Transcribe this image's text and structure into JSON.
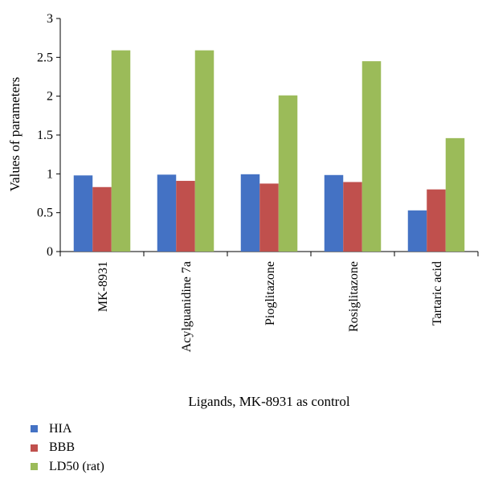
{
  "chart_data": {
    "type": "bar",
    "title": "",
    "xlabel": "Ligands, MK-8931 as control",
    "ylabel": "Values of parameters",
    "categories": [
      "MK-8931",
      "Acylguanidine 7a",
      "Pioglitazone",
      "Rosiglitazone",
      "Tartaric acid"
    ],
    "series": [
      {
        "name": "HIA",
        "color": "#4472C4",
        "values": [
          0.98,
          0.99,
          0.995,
          0.985,
          0.53
        ]
      },
      {
        "name": "BBB",
        "color": "#C0504D",
        "values": [
          0.83,
          0.91,
          0.875,
          0.895,
          0.8
        ]
      },
      {
        "name": "LD50 (rat)",
        "color": "#9BBB59",
        "values": [
          2.59,
          2.59,
          2.01,
          2.45,
          1.46
        ]
      }
    ],
    "ylim": [
      0,
      3
    ],
    "yticks": [
      "0",
      "0.5",
      "1",
      "1.5",
      "2",
      "2.5",
      "3"
    ],
    "grid": false,
    "legend_position": "bottom-left"
  }
}
